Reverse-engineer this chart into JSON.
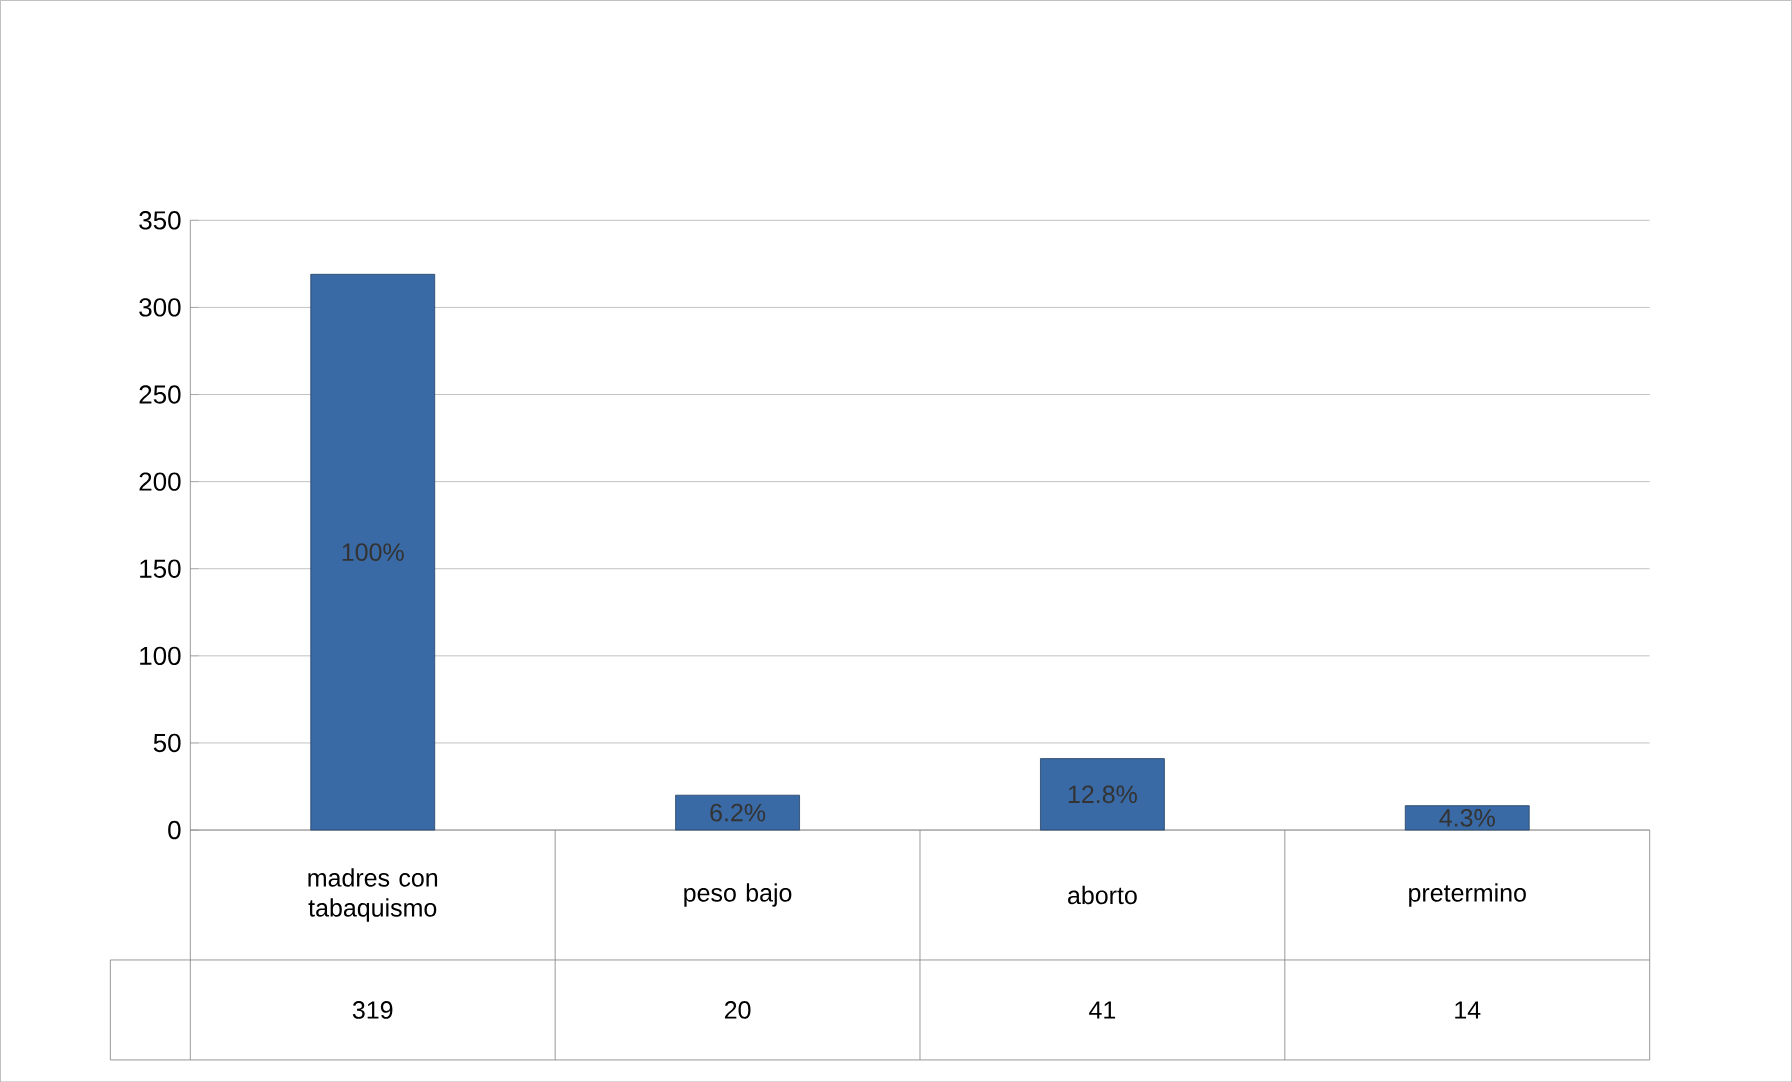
{
  "chart_data": {
    "type": "bar",
    "categories": [
      "madres con tabaquismo",
      "peso bajo",
      "aborto",
      "pretermino"
    ],
    "values": [
      319,
      20,
      41,
      14
    ],
    "color": "#3a6aa5",
    "value_labels": [
      "319",
      "20",
      "41",
      "14"
    ],
    "annotations": [
      "100%",
      "6.2%",
      "12.8%",
      "4.3%"
    ],
    "ylim": [
      0,
      350
    ],
    "yticks": [
      0,
      50,
      100,
      150,
      200,
      250,
      300,
      350
    ],
    "grid": "y"
  }
}
